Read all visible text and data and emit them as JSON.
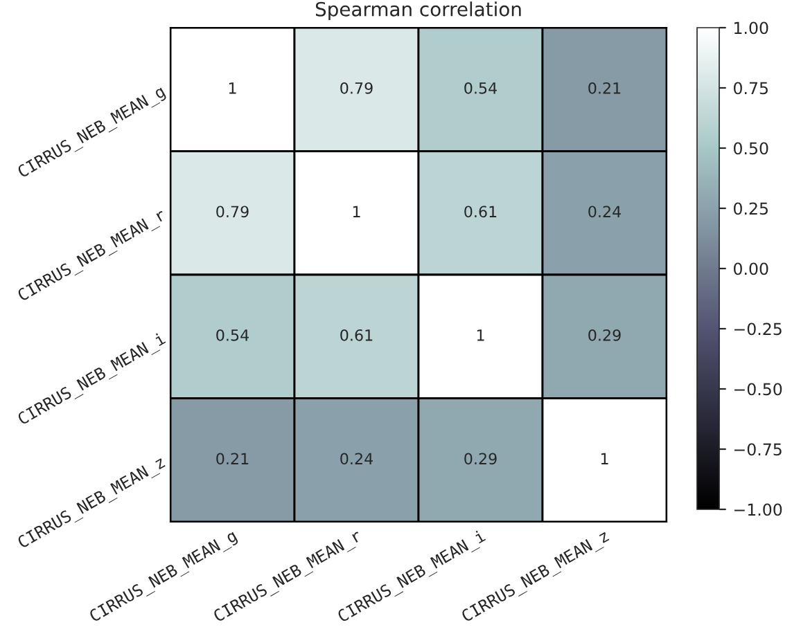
{
  "chart_data": {
    "type": "heatmap",
    "title": "Spearman correlation",
    "categories": [
      "CIRRUS_NEB_MEAN_g",
      "CIRRUS_NEB_MEAN_r",
      "CIRRUS_NEB_MEAN_i",
      "CIRRUS_NEB_MEAN_z"
    ],
    "y_categories": [
      "CIRRUS_NEB_MEAN_g",
      "CIRRUS_NEB_MEAN_r",
      "CIRRUS_NEB_MEAN_i",
      "CIRRUS_NEB_MEAN_z"
    ],
    "cells": [
      [
        1,
        0.79,
        0.54,
        0.21
      ],
      [
        0.79,
        1,
        0.61,
        0.24
      ],
      [
        0.54,
        0.61,
        1,
        0.29
      ],
      [
        0.21,
        0.24,
        0.29,
        1
      ]
    ],
    "clim": [
      -1,
      1
    ],
    "cticks": [
      {
        "value": -1,
        "label": "−1.00"
      },
      {
        "value": -0.75,
        "label": "−0.75"
      },
      {
        "value": -0.5,
        "label": "−0.50"
      },
      {
        "value": -0.25,
        "label": "−0.25"
      },
      {
        "value": 0,
        "label": "0.00"
      },
      {
        "value": 0.25,
        "label": "0.25"
      },
      {
        "value": 0.5,
        "label": "0.50"
      },
      {
        "value": 0.75,
        "label": "0.75"
      },
      {
        "value": 1,
        "label": "1.00"
      }
    ],
    "data_labels": true
  }
}
